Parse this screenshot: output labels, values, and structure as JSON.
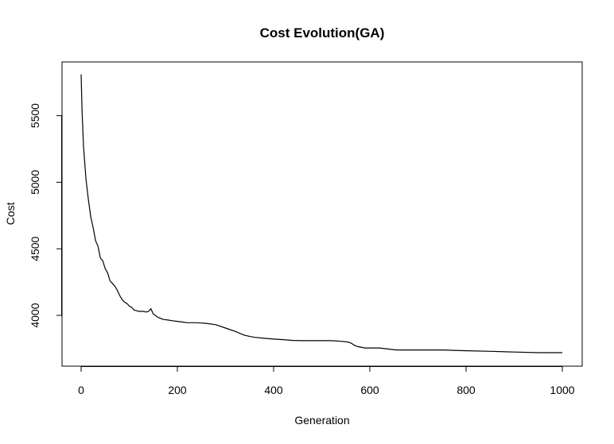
{
  "chart_data": {
    "type": "line",
    "title": "Cost Evolution(GA)",
    "xlabel": "Generation",
    "ylabel": "Cost",
    "xlim": [
      0,
      1000
    ],
    "ylim": [
      3708,
      5820
    ],
    "xticks": [
      0,
      200,
      400,
      600,
      800,
      1000
    ],
    "yticks": [
      4000,
      4500,
      5000,
      5500
    ],
    "grid": false,
    "legend": "none",
    "line_color": "#000000",
    "series": [
      {
        "x": [
          0,
          2,
          5,
          10,
          15,
          20,
          25,
          30,
          35,
          40,
          45,
          50,
          55,
          60,
          65,
          70,
          75,
          80,
          85,
          90,
          95,
          100,
          105,
          110,
          115,
          120,
          125,
          130,
          135,
          140,
          145,
          150,
          160,
          170,
          180,
          190,
          200,
          210,
          220,
          240,
          260,
          280,
          300,
          320,
          340,
          360,
          380,
          400,
          420,
          440,
          460,
          480,
          500,
          520,
          540,
          555,
          562,
          568,
          575,
          590,
          620,
          655,
          700,
          750,
          795,
          850,
          900,
          950,
          1000
        ],
        "y": [
          5810,
          5530,
          5270,
          5030,
          4870,
          4740,
          4660,
          4560,
          4520,
          4430,
          4410,
          4350,
          4320,
          4260,
          4240,
          4220,
          4190,
          4150,
          4120,
          4100,
          4090,
          4070,
          4060,
          4040,
          4035,
          4030,
          4030,
          4030,
          4025,
          4030,
          4050,
          4010,
          3985,
          3970,
          3965,
          3960,
          3955,
          3950,
          3945,
          3945,
          3940,
          3930,
          3905,
          3880,
          3850,
          3835,
          3828,
          3822,
          3818,
          3812,
          3810,
          3810,
          3810,
          3810,
          3805,
          3800,
          3790,
          3775,
          3765,
          3755,
          3755,
          3740,
          3740,
          3740,
          3735,
          3730,
          3725,
          3720,
          3720
        ]
      }
    ]
  }
}
